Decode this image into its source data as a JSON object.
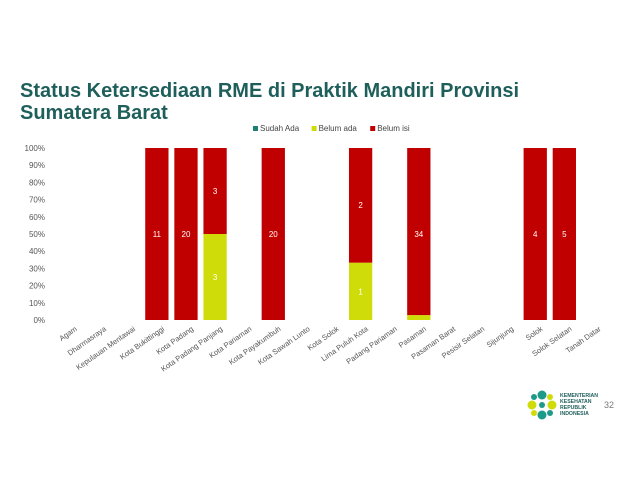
{
  "slide": {
    "title": "Status Ketersediaan RME di Praktik Mandiri Provinsi Sumatera Barat",
    "page_number": "32",
    "logo": {
      "lines": [
        "KEMENTERIAN",
        "KESEHATAN",
        "REPUBLIK",
        "INDONESIA"
      ]
    }
  },
  "colors": {
    "title": "#1f5f5b",
    "sudah_ada": "#1e7f72",
    "belum_ada": "#cfdc0a",
    "belum_isi": "#c00000",
    "logo_teal": "#1e9a8a",
    "logo_lime": "#cfdc0a"
  },
  "chart_data": {
    "type": "bar",
    "stacked": "percent",
    "categories": [
      "Agam",
      "Dharmasraya",
      "Kepulauan Mentawai",
      "Kota Bukittinggi",
      "Kota Padang",
      "Kota Padang Panjang",
      "Kota Pariaman",
      "Kota Payakumbuh",
      "Kota Sawah Lunto",
      "Kota Solok",
      "Lima Puluh Kota",
      "Padang Pariaman",
      "Pasaman",
      "Pasaman Barat",
      "Pesisir Selatan",
      "Sijunjung",
      "Solok",
      "Solok Selatan",
      "Tanah Datar"
    ],
    "series": [
      {
        "name": "Sudah Ada",
        "values": [
          null,
          null,
          null,
          null,
          null,
          null,
          null,
          null,
          null,
          null,
          null,
          null,
          null,
          null,
          null,
          null,
          null,
          null,
          null
        ]
      },
      {
        "name": "Belum ada",
        "values": [
          null,
          null,
          null,
          0,
          0,
          3,
          null,
          0,
          null,
          null,
          1,
          null,
          1,
          null,
          null,
          null,
          0,
          0,
          null
        ]
      },
      {
        "name": "Belum isi",
        "values": [
          null,
          null,
          null,
          11,
          20,
          3,
          null,
          20,
          null,
          null,
          2,
          null,
          34,
          null,
          null,
          null,
          4,
          5,
          null
        ]
      }
    ],
    "y_ticks": [
      "0%",
      "10%",
      "20%",
      "30%",
      "40%",
      "50%",
      "60%",
      "70%",
      "80%",
      "90%",
      "100%"
    ],
    "ylim": [
      0,
      100
    ],
    "legend_position": "top",
    "grid": false
  }
}
